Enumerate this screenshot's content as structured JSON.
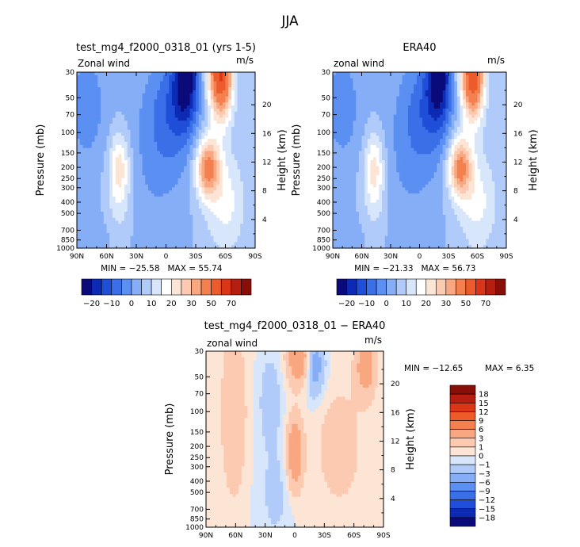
{
  "figure": {
    "title": "JJA"
  },
  "chart_data": [
    {
      "type": "contour",
      "title": "test_mg4_f2000_0318_01 (yrs 1-5)",
      "left_label": "Zonal wind",
      "right_label": "m/s",
      "xlabel": "",
      "ylabel": "Pressure (mb)",
      "ylabel_right": "Height (km)",
      "x_ticks": [
        "90N",
        "60N",
        "30N",
        "0",
        "30S",
        "60S",
        "90S"
      ],
      "y_ticks": [
        "30",
        "50",
        "70",
        "100",
        "150",
        "200",
        "250",
        "300",
        "400",
        "500",
        "700",
        "850",
        "1000"
      ],
      "y_ticks_right": [
        "20",
        "16",
        "12",
        "8",
        "4"
      ],
      "min_label": "MIN = −25.58",
      "max_label": "MAX =  55.74",
      "features": [
        {
          "kind": "easterly_jet",
          "lat": -20,
          "pressure_mb": 40,
          "value": -25.58
        },
        {
          "kind": "westerly_jet",
          "lat": -55,
          "pressure_mb": 35,
          "value": 55.74
        },
        {
          "kind": "westerly_jet_lower",
          "lat": -40,
          "pressure_mb": 200,
          "value": 35
        },
        {
          "kind": "nh_westerly",
          "lat": 48,
          "pressure_mb": 200,
          "value": 15
        }
      ],
      "colorbar": {
        "levels": [
          "−20",
          "−10",
          "0",
          "10",
          "20",
          "30",
          "50",
          "70"
        ],
        "colors": [
          "#0a0a7a",
          "#0d2ab4",
          "#1f4ed8",
          "#3a6fe8",
          "#5b8ff2",
          "#85aef7",
          "#b0cbfa",
          "#d8e6fc",
          "#ffffff",
          "#fde5d6",
          "#fccab0",
          "#f9a780",
          "#f5804f",
          "#ee5b2b",
          "#db3518",
          "#b51e10",
          "#8a0e08"
        ]
      }
    },
    {
      "type": "contour",
      "title": "ERA40",
      "left_label": "zonal wind",
      "right_label": "m/s",
      "xlabel": "",
      "ylabel": "Pressure (mb)",
      "ylabel_right": "Height (km)",
      "x_ticks": [
        "90N",
        "60N",
        "30N",
        "0",
        "30S",
        "60S",
        "90S"
      ],
      "y_ticks": [
        "30",
        "50",
        "70",
        "100",
        "150",
        "200",
        "250",
        "300",
        "400",
        "500",
        "700",
        "850",
        "1000"
      ],
      "y_ticks_right": [
        "20",
        "16",
        "12",
        "8",
        "4"
      ],
      "min_label": "MIN = −21.33",
      "max_label": "MAX =  56.73",
      "features": [
        {
          "kind": "easterly_jet",
          "lat": -20,
          "pressure_mb": 40,
          "value": -21.33
        },
        {
          "kind": "westerly_jet",
          "lat": -55,
          "pressure_mb": 35,
          "value": 56.73
        },
        {
          "kind": "westerly_jet_lower",
          "lat": -40,
          "pressure_mb": 200,
          "value": 35
        },
        {
          "kind": "nh_westerly",
          "lat": 48,
          "pressure_mb": 200,
          "value": 15
        }
      ],
      "colorbar": {
        "levels": [
          "−20",
          "−10",
          "0",
          "10",
          "20",
          "30",
          "50",
          "70"
        ],
        "colors": [
          "#0a0a7a",
          "#0d2ab4",
          "#1f4ed8",
          "#3a6fe8",
          "#5b8ff2",
          "#85aef7",
          "#b0cbfa",
          "#d8e6fc",
          "#ffffff",
          "#fde5d6",
          "#fccab0",
          "#f9a780",
          "#f5804f",
          "#ee5b2b",
          "#db3518",
          "#b51e10",
          "#8a0e08"
        ]
      }
    },
    {
      "type": "contour",
      "title": "test_mg4_f2000_0318_01 − ERA40",
      "left_label": "zonal wind",
      "right_label": "m/s",
      "xlabel": "",
      "ylabel": "Pressure (mb)",
      "ylabel_right": "Height (km)",
      "x_ticks": [
        "90N",
        "60N",
        "30N",
        "0",
        "30S",
        "60S",
        "90S"
      ],
      "y_ticks": [
        "30",
        "50",
        "70",
        "100",
        "150",
        "200",
        "250",
        "300",
        "400",
        "500",
        "700",
        "850",
        "1000"
      ],
      "y_ticks_right": [
        "20",
        "16",
        "12",
        "8",
        "4"
      ],
      "min_label": "MIN = −12.65",
      "max_label": "MAX =    6.35",
      "features": [
        {
          "kind": "positive_anomaly",
          "lat": 0,
          "pressure_mb": 220,
          "value": 6.35
        },
        {
          "kind": "positive_anomaly",
          "lat": -75,
          "pressure_mb": 40,
          "value": 5
        },
        {
          "kind": "negative_anomaly",
          "lat": -20,
          "pressure_mb": 40,
          "value": -12.65
        }
      ],
      "colorbar": {
        "levels": [
          "18",
          "15",
          "12",
          "9",
          "6",
          "3",
          "1",
          "0",
          "−1",
          "−3",
          "−6",
          "−9",
          "−12",
          "−15",
          "−18"
        ],
        "colors": [
          "#8a0e08",
          "#b51e10",
          "#db3518",
          "#ee5b2b",
          "#f5804f",
          "#f9a780",
          "#fccab0",
          "#fde5d6",
          "#d8e6fc",
          "#b0cbfa",
          "#85aef7",
          "#5b8ff2",
          "#3a6fe8",
          "#1f4ed8",
          "#0d2ab4",
          "#0a0a7a"
        ]
      }
    }
  ]
}
